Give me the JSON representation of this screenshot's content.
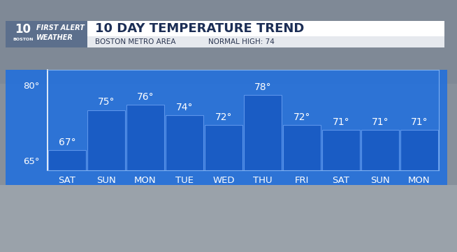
{
  "chart_data": {
    "type": "bar",
    "branding": [
      "10",
      "BOSTON",
      "FIRST ALERT",
      "WEATHER"
    ],
    "title": "10 DAY TEMPERATURE TREND",
    "subtitle": "BOSTON METRO AREA",
    "annotations": [
      "NORMAL HIGH: 74"
    ],
    "categories": [
      "SAT",
      "SUN",
      "MON",
      "TUE",
      "WED",
      "THU",
      "FRI",
      "SAT",
      "SUN",
      "MON"
    ],
    "values": [
      67,
      75,
      76,
      74,
      72,
      78,
      72,
      71,
      71,
      71
    ],
    "value_labels": [
      "67°",
      "75°",
      "76°",
      "74°",
      "72°",
      "78°",
      "72°",
      "71°",
      "71°",
      "71°"
    ],
    "data_labels": true,
    "color": "#1a5cc4",
    "ylim": [
      63,
      83
    ],
    "yticks": [
      {
        "value": 65,
        "label": "65°"
      },
      {
        "value": 80,
        "label": "80°"
      }
    ],
    "grid": false
  }
}
